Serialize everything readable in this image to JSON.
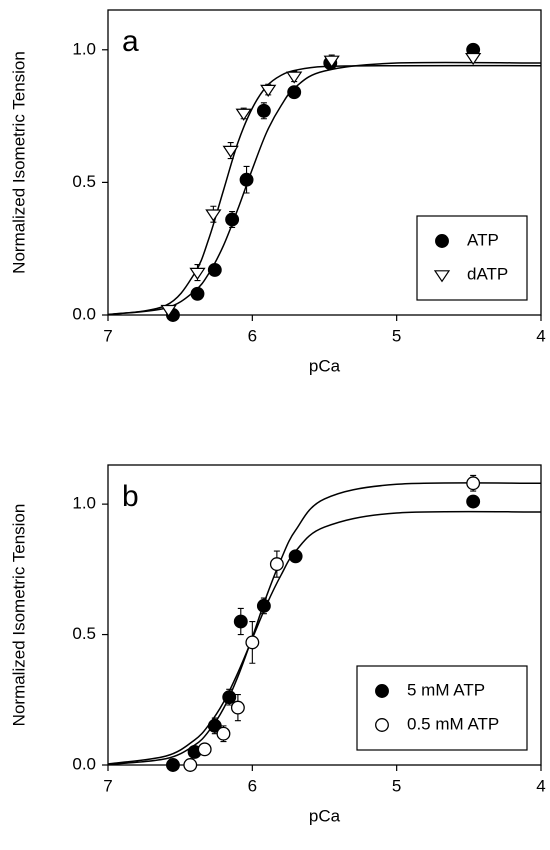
{
  "chart_data": [
    {
      "type": "scatter",
      "label": "a",
      "xlabel": "pCa",
      "ylabel": "Normalized Isometric Tension",
      "xlim": [
        7,
        4
      ],
      "ylim": [
        0,
        1.15
      ],
      "xticks": [
        7,
        6,
        5,
        4
      ],
      "yticks": [
        {
          "value": 0,
          "label": "0.0"
        },
        0.5,
        {
          "value": 1,
          "label": "1.0"
        }
      ],
      "legend": "lower right",
      "series": [
        {
          "name": "ATP",
          "color": "#000000",
          "marker": "circle",
          "filled": true,
          "x": [
            6.55,
            6.38,
            6.26,
            6.14,
            6.04,
            5.92,
            5.71,
            5.46,
            4.47
          ],
          "values": [
            0.0,
            0.08,
            0.17,
            0.36,
            0.51,
            0.77,
            0.84,
            0.95,
            1.0
          ],
          "errors": [
            0.01,
            0.02,
            0.02,
            0.03,
            0.05,
            0.03,
            0.02,
            0.02,
            0.01
          ]
        },
        {
          "name": "dATP",
          "color": "#000000",
          "marker": "triangle-down",
          "filled": false,
          "x": [
            6.58,
            6.38,
            6.27,
            6.15,
            6.06,
            5.89,
            5.71,
            5.45,
            4.47
          ],
          "values": [
            0.02,
            0.16,
            0.38,
            0.62,
            0.76,
            0.85,
            0.9,
            0.96,
            0.97
          ],
          "errors": [
            0.01,
            0.03,
            0.03,
            0.03,
            0.02,
            0.02,
            0.02,
            0.02,
            0.01
          ]
        }
      ],
      "curves": [
        {
          "x": [
            7,
            6.6,
            6.4,
            6.3,
            6.2,
            6.1,
            6.0,
            5.9,
            5.8,
            5.7,
            5.5,
            5.0,
            4.0
          ],
          "values": [
            0.002,
            0.026,
            0.09,
            0.158,
            0.262,
            0.4,
            0.55,
            0.69,
            0.79,
            0.86,
            0.92,
            0.95,
            0.95
          ]
        },
        {
          "x": [
            7,
            6.6,
            6.4,
            6.3,
            6.2,
            6.1,
            6.0,
            5.9,
            5.8,
            5.7,
            5.5,
            5.0,
            4.0
          ],
          "values": [
            0.001,
            0.036,
            0.157,
            0.29,
            0.47,
            0.65,
            0.78,
            0.863,
            0.904,
            0.923,
            0.937,
            0.94,
            0.94
          ]
        }
      ]
    },
    {
      "type": "scatter",
      "label": "b",
      "xlabel": "pCa",
      "ylabel": "Normalized Isometric Tension",
      "xlim": [
        7,
        4
      ],
      "ylim": [
        0,
        1.15
      ],
      "xticks": [
        7,
        6,
        5,
        4
      ],
      "yticks": [
        {
          "value": 0,
          "label": "0.0"
        },
        0.5,
        {
          "value": 1,
          "label": "1.0"
        }
      ],
      "legend": "lower right",
      "series": [
        {
          "name": "5 mM ATP",
          "color": "#000000",
          "marker": "circle",
          "filled": true,
          "x": [
            6.55,
            6.4,
            6.26,
            6.16,
            6.08,
            5.92,
            5.7,
            4.47
          ],
          "values": [
            0.0,
            0.05,
            0.15,
            0.26,
            0.55,
            0.61,
            0.8,
            1.01
          ],
          "errors": [
            0.01,
            0.02,
            0.03,
            0.03,
            0.05,
            0.03,
            0.02,
            0.01
          ]
        },
        {
          "name": "0.5 mM ATP",
          "color": "#000000",
          "marker": "circle",
          "filled": false,
          "x": [
            6.43,
            6.33,
            6.2,
            6.1,
            6.0,
            5.83,
            4.47
          ],
          "values": [
            0.0,
            0.06,
            0.12,
            0.22,
            0.47,
            0.77,
            1.08
          ],
          "errors": [
            0.01,
            0.02,
            0.03,
            0.05,
            0.08,
            0.05,
            0.03
          ]
        }
      ],
      "curves": [
        {
          "x": [
            7,
            6.6,
            6.4,
            6.3,
            6.2,
            6.1,
            6.0,
            5.9,
            5.8,
            5.7,
            5.5,
            5.0,
            4.0
          ],
          "values": [
            0.004,
            0.034,
            0.096,
            0.155,
            0.24,
            0.354,
            0.485,
            0.616,
            0.729,
            0.82,
            0.912,
            0.966,
            0.97
          ]
        },
        {
          "x": [
            7,
            6.6,
            6.4,
            6.3,
            6.2,
            6.1,
            6.0,
            5.9,
            5.8,
            5.7,
            5.5,
            5.0,
            4.0
          ],
          "values": [
            0.002,
            0.024,
            0.076,
            0.131,
            0.216,
            0.339,
            0.49,
            0.65,
            0.79,
            0.9,
            1.02,
            1.076,
            1.08
          ]
        }
      ]
    }
  ]
}
